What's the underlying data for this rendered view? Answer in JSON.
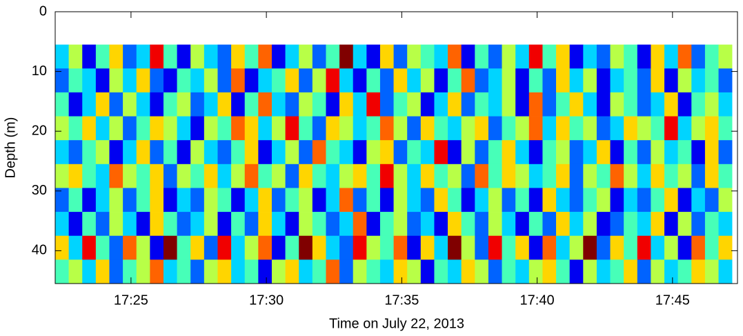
{
  "chart_data": {
    "type": "heatmap",
    "xlabel": "Time on July 22, 2013",
    "ylabel": "Depth (m)",
    "colormap": "jet",
    "clim": [
      0,
      9
    ],
    "xlim": [
      1042.2,
      1067.4
    ],
    "ylim": [
      0,
      45.5
    ],
    "y_reversed": true,
    "xticks": [
      {
        "value": 1045,
        "label": "17:25"
      },
      {
        "value": 1050,
        "label": "17:30"
      },
      {
        "value": 1055,
        "label": "17:35"
      },
      {
        "value": 1060,
        "label": "17:40"
      },
      {
        "value": 1065,
        "label": "17:45"
      }
    ],
    "yticks": [
      0,
      10,
      20,
      30,
      40
    ],
    "x": [
      1042.45,
      1042.95,
      1043.45,
      1043.95,
      1044.45,
      1044.95,
      1045.45,
      1045.95,
      1046.45,
      1046.95,
      1047.45,
      1047.95,
      1048.45,
      1048.95,
      1049.45,
      1049.95,
      1050.45,
      1050.95,
      1051.45,
      1051.95,
      1052.45,
      1052.95,
      1053.45,
      1053.95,
      1054.45,
      1054.95,
      1055.45,
      1055.95,
      1056.45,
      1056.95,
      1057.45,
      1057.95,
      1058.45,
      1058.95,
      1059.45,
      1059.95,
      1060.45,
      1060.95,
      1061.45,
      1061.95,
      1062.45,
      1062.95,
      1063.45,
      1063.95,
      1064.45,
      1064.95,
      1065.45,
      1065.95,
      1066.45,
      1066.95
    ],
    "y": [
      7.5,
      11.5,
      15.5,
      19.5,
      23.5,
      27.5,
      31.5,
      35.5,
      39.5,
      43.5
    ],
    "values": [
      [
        3,
        5,
        1,
        4,
        6,
        2,
        3,
        8,
        4,
        1,
        5,
        3,
        2,
        6,
        4,
        7,
        1,
        3,
        5,
        2,
        4,
        9,
        3,
        1,
        6,
        2,
        5,
        4,
        3,
        7,
        1,
        4,
        2,
        5,
        3,
        8,
        4,
        6,
        1,
        3,
        2,
        5,
        4,
        1,
        6,
        3,
        7,
        2,
        4,
        5
      ],
      [
        2,
        4,
        3,
        1,
        5,
        3,
        6,
        2,
        1,
        4,
        3,
        5,
        2,
        7,
        1,
        3,
        4,
        6,
        2,
        5,
        8,
        3,
        1,
        4,
        2,
        6,
        3,
        5,
        1,
        4,
        7,
        2,
        3,
        5,
        1,
        4,
        2,
        6,
        3,
        5,
        1,
        3,
        4,
        2,
        6,
        1,
        5,
        3,
        4,
        2
      ],
      [
        4,
        1,
        3,
        6,
        2,
        5,
        3,
        1,
        4,
        5,
        2,
        3,
        6,
        1,
        4,
        7,
        3,
        2,
        5,
        4,
        1,
        6,
        3,
        8,
        2,
        4,
        5,
        1,
        3,
        6,
        2,
        4,
        3,
        5,
        1,
        7,
        2,
        4,
        6,
        3,
        1,
        5,
        4,
        2,
        3,
        6,
        1,
        4,
        5,
        3
      ],
      [
        5,
        4,
        6,
        3,
        5,
        2,
        4,
        6,
        5,
        3,
        1,
        5,
        4,
        7,
        6,
        3,
        5,
        8,
        4,
        2,
        6,
        5,
        3,
        4,
        7,
        5,
        2,
        6,
        4,
        3,
        5,
        6,
        2,
        4,
        5,
        7,
        3,
        6,
        4,
        5,
        2,
        3,
        6,
        5,
        4,
        8,
        3,
        5,
        6,
        4
      ],
      [
        3,
        2,
        4,
        5,
        1,
        3,
        6,
        2,
        4,
        1,
        5,
        3,
        2,
        4,
        6,
        1,
        3,
        5,
        2,
        7,
        4,
        3,
        1,
        5,
        6,
        2,
        4,
        3,
        8,
        1,
        5,
        2,
        4,
        6,
        3,
        1,
        4,
        5,
        2,
        3,
        6,
        1,
        4,
        2,
        5,
        3,
        4,
        1,
        6,
        2
      ],
      [
        5,
        6,
        4,
        3,
        7,
        5,
        4,
        6,
        2,
        5,
        4,
        6,
        3,
        5,
        7,
        4,
        5,
        2,
        6,
        4,
        3,
        5,
        6,
        4,
        8,
        5,
        3,
        6,
        4,
        5,
        2,
        7,
        4,
        6,
        5,
        3,
        4,
        6,
        2,
        5,
        4,
        7,
        5,
        3,
        6,
        4,
        5,
        2,
        6,
        4
      ],
      [
        2,
        4,
        1,
        3,
        5,
        2,
        4,
        6,
        1,
        3,
        2,
        5,
        4,
        1,
        3,
        6,
        2,
        4,
        5,
        1,
        3,
        7,
        2,
        4,
        1,
        5,
        3,
        2,
        6,
        4,
        1,
        3,
        5,
        2,
        4,
        1,
        6,
        3,
        2,
        4,
        5,
        1,
        3,
        2,
        4,
        6,
        1,
        3,
        2,
        5
      ],
      [
        3,
        1,
        4,
        2,
        5,
        3,
        1,
        6,
        4,
        2,
        3,
        5,
        1,
        4,
        2,
        6,
        3,
        1,
        5,
        4,
        2,
        3,
        7,
        1,
        4,
        5,
        2,
        3,
        1,
        6,
        4,
        2,
        5,
        3,
        1,
        4,
        2,
        6,
        3,
        5,
        1,
        2,
        4,
        3,
        6,
        1,
        5,
        2,
        4,
        3
      ],
      [
        6,
        3,
        8,
        4,
        2,
        7,
        5,
        1,
        9,
        4,
        6,
        2,
        8,
        3,
        5,
        7,
        1,
        4,
        9,
        6,
        3,
        2,
        8,
        5,
        4,
        7,
        1,
        6,
        3,
        9,
        5,
        2,
        8,
        4,
        6,
        1,
        7,
        3,
        5,
        9,
        2,
        6,
        4,
        8,
        3,
        5,
        1,
        7,
        4,
        6
      ],
      [
        4,
        5,
        3,
        6,
        2,
        4,
        5,
        7,
        3,
        4,
        2,
        5,
        6,
        3,
        4,
        1,
        5,
        6,
        3,
        4,
        7,
        2,
        5,
        4,
        3,
        6,
        5,
        1,
        4,
        3,
        6,
        5,
        2,
        4,
        3,
        5,
        6,
        4,
        1,
        5,
        3,
        4,
        6,
        2,
        5,
        3,
        4,
        6,
        5,
        3
      ]
    ]
  }
}
